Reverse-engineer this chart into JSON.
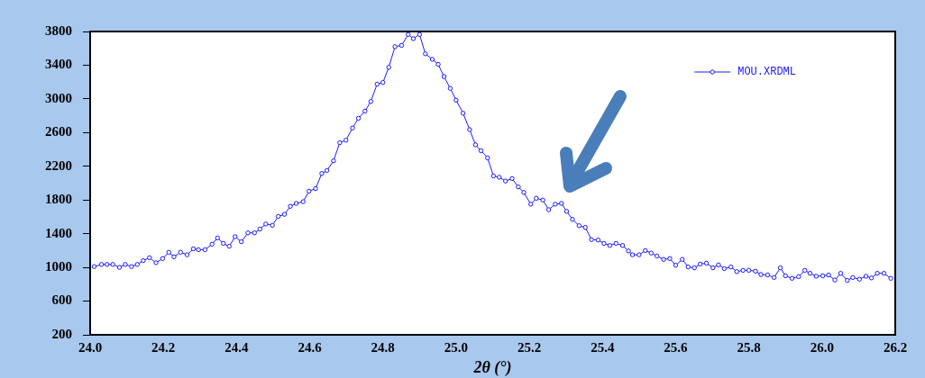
{
  "chart_data": {
    "type": "line",
    "xlabel": "2θ (°)",
    "xlim": [
      24.0,
      26.2
    ],
    "xticks": [
      {
        "value": 24.0,
        "label": "24.0"
      },
      {
        "value": 24.2,
        "label": "24.2"
      },
      {
        "value": 24.4,
        "label": "24.4"
      },
      {
        "value": 24.6,
        "label": "24.6"
      },
      {
        "value": 24.8,
        "label": "24.8"
      },
      {
        "value": 25.0,
        "label": "25.0"
      },
      {
        "value": 25.2,
        "label": "25.2"
      },
      {
        "value": 25.4,
        "label": "25.4"
      },
      {
        "value": 25.6,
        "label": "25.6"
      },
      {
        "value": 25.8,
        "label": "25.8"
      },
      {
        "value": 26.0,
        "label": "26.0"
      },
      {
        "value": 26.2,
        "label": "26.2"
      }
    ],
    "ylim": [
      200,
      3800
    ],
    "yticks": [
      200,
      600,
      1000,
      1400,
      1800,
      2200,
      2600,
      3000,
      3400,
      3800
    ],
    "grid": false,
    "legend": "top right",
    "marker": "circle",
    "line_style": "solid",
    "series": [
      {
        "name": "MOU.XRDML",
        "color": "#1a1aff",
        "x": [
          24.011,
          24.031,
          24.046,
          24.062,
          24.08,
          24.096,
          24.113,
          24.129,
          24.145,
          24.162,
          24.18,
          24.198,
          24.215,
          24.229,
          24.247,
          24.265,
          24.282,
          24.296,
          24.314,
          24.333,
          24.348,
          24.364,
          24.38,
          24.396,
          24.413,
          24.431,
          24.449,
          24.464,
          24.48,
          24.498,
          24.514,
          24.531,
          24.547,
          24.563,
          24.582,
          24.598,
          24.616,
          24.633,
          24.647,
          24.665,
          24.682,
          24.699,
          24.717,
          24.733,
          24.751,
          24.767,
          24.784,
          24.8,
          24.816,
          24.833,
          24.851,
          24.869,
          24.883,
          24.9,
          24.916,
          24.935,
          24.951,
          24.967,
          24.984,
          25.0,
          25.019,
          25.037,
          25.053,
          25.068,
          25.086,
          25.102,
          25.118,
          25.135,
          25.153,
          25.17,
          25.185,
          25.204,
          25.219,
          25.237,
          25.253,
          25.271,
          25.288,
          25.302,
          25.318,
          25.336,
          25.353,
          25.37,
          25.388,
          25.404,
          25.42,
          25.437,
          25.455,
          25.471,
          25.482,
          25.5,
          25.517,
          25.533,
          25.549,
          25.567,
          25.584,
          25.6,
          25.618,
          25.634,
          25.651,
          25.667,
          25.684,
          25.702,
          25.717,
          25.733,
          25.751,
          25.767,
          25.784,
          25.8,
          25.818,
          25.833,
          25.851,
          25.869,
          25.886,
          25.9,
          25.918,
          25.936,
          25.953,
          25.967,
          25.984,
          26.002,
          26.018,
          26.035,
          26.051,
          26.069,
          26.084,
          26.102,
          26.12,
          26.135,
          26.151,
          26.169,
          26.188
        ],
        "values": [
          1010,
          1035,
          1035,
          1035,
          1000,
          1035,
          1010,
          1035,
          1080,
          1115,
          1055,
          1105,
          1180,
          1125,
          1180,
          1150,
          1220,
          1210,
          1210,
          1275,
          1350,
          1285,
          1250,
          1365,
          1305,
          1410,
          1410,
          1455,
          1515,
          1500,
          1605,
          1630,
          1725,
          1760,
          1780,
          1905,
          1935,
          2115,
          2150,
          2265,
          2480,
          2510,
          2655,
          2770,
          2855,
          2970,
          3175,
          3195,
          3375,
          3620,
          3635,
          3765,
          3715,
          3765,
          3535,
          3470,
          3410,
          3265,
          3125,
          2985,
          2830,
          2635,
          2455,
          2385,
          2300,
          2085,
          2070,
          2025,
          2055,
          1955,
          1890,
          1750,
          1820,
          1800,
          1685,
          1750,
          1760,
          1665,
          1570,
          1495,
          1475,
          1330,
          1325,
          1285,
          1260,
          1285,
          1260,
          1195,
          1150,
          1150,
          1200,
          1170,
          1135,
          1095,
          1105,
          1025,
          1095,
          1005,
          995,
          1040,
          1050,
          995,
          1030,
          985,
          1005,
          950,
          965,
          965,
          955,
          915,
          910,
          880,
          995,
          900,
          870,
          890,
          965,
          930,
          895,
          900,
          910,
          850,
          930,
          845,
          880,
          860,
          895,
          875,
          930,
          930,
          870
        ]
      }
    ]
  }
}
